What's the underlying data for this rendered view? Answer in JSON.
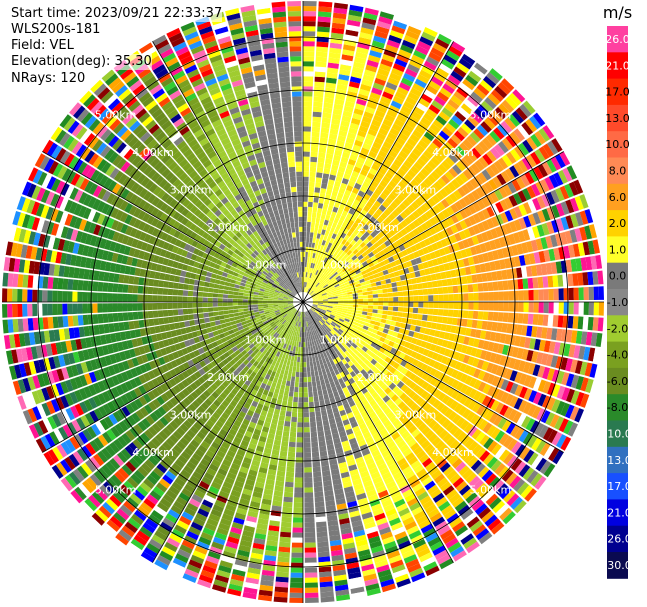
{
  "header": {
    "start_time": "Start time: 2023/09/21 22:33:37",
    "instrument": "WLS200s-181",
    "field": "Field: VEL",
    "elevation": "Elevation(deg): 35.30",
    "nrays": "NRays: 120"
  },
  "colorbar": {
    "unit": "m/s",
    "ticks": [
      "26.0",
      "21.0",
      "17.0",
      "13.0",
      "10.0",
      "8.0",
      "6.0",
      "2.0",
      "1.0",
      "0.0",
      "-1.0",
      "-2.0",
      "-4.0",
      "-6.0",
      "-8.0",
      "-10.0",
      "-13.0",
      "-17.0",
      "-21.0",
      "-26.0",
      "-30.0"
    ],
    "colors": [
      "#ff40a0",
      "#ff0000",
      "#ff2a00",
      "#ff4a2a",
      "#ff6a45",
      "#ff8a55",
      "#ffa020",
      "#ffd200",
      "#ffff2a",
      "#7a7a7a",
      "#888888",
      "#a0cc30",
      "#7aa020",
      "#6a8c20",
      "#2a8a2a",
      "#2a7a50",
      "#3070c0",
      "#1850ff",
      "#0000e0",
      "#000090",
      "#0a0a50"
    ]
  },
  "chart_data": {
    "type": "ppi",
    "field": "VEL",
    "units": "m/s",
    "elevation_deg": 35.3,
    "nrays": 120,
    "range_rings_km": [
      1.0,
      2.0,
      3.0,
      4.0,
      5.0
    ],
    "ring_labels": [
      "1.00km",
      "2.00km",
      "3.00km",
      "4.00km",
      "5.00km"
    ],
    "azimuth_spokes_deg": [
      0,
      30,
      60,
      90,
      120,
      150,
      180,
      210,
      240,
      270,
      300,
      330
    ],
    "pattern": "positive (receding) velocities 0 to 10 m/s east/southeast, negative -2 to -8 m/s west/southwest, noisy multicolor beyond ~4 km",
    "colorscale_min": -30.0,
    "colorscale_max": 30.0
  }
}
